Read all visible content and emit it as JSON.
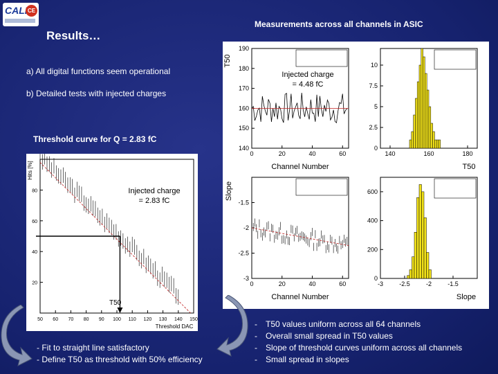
{
  "logo": {
    "text_left": "CALI",
    "text_right": "CE"
  },
  "title": "Results…",
  "headline": "Measurements across all channels in ASIC",
  "bullets": [
    "a) All digital functions seem operational",
    "b) Detailed tests with injected charges"
  ],
  "threshold_title": "Threshold curve for Q = 2.83 fC",
  "annotations": {
    "injected_top_1": "Injected charge",
    "injected_top_2": "= 4.48 fC",
    "injected_left_1": "Injected charge",
    "injected_left_2": "= 2.83 fC",
    "t50_marker": "T50"
  },
  "notes": [
    "- Fit to straight line satisfactory",
    "- Define T50 as threshold with 50% efficiency"
  ],
  "summary": [
    "T50 values uniform across all 64 channels",
    "Overall small spread in T50 values",
    "Slope of threshold curves uniform across all channels",
    "Small spread in slopes"
  ],
  "summary_dash": "-",
  "chart_data": [
    {
      "type": "scatter",
      "ylabel": "T50",
      "xlabel": "Channel Number",
      "xlim": [
        0,
        64
      ],
      "ylim": [
        140,
        190
      ],
      "x_ticks": [
        "0",
        "20",
        "40",
        "60"
      ],
      "y_ticks": [
        "140",
        "150",
        "160",
        "170",
        "180",
        "190"
      ],
      "fit_value": 160
    },
    {
      "type": "bar",
      "xlabel": "T50",
      "xlim": [
        135,
        185
      ],
      "ylim": [
        0,
        12
      ],
      "x_ticks": [
        "140",
        "160",
        "180"
      ],
      "y_ticks": [
        "0",
        "2.5",
        "5",
        "7.5",
        "10"
      ],
      "categories": [
        150,
        151,
        152,
        153,
        154,
        155,
        156,
        157,
        158,
        159,
        160,
        161,
        162,
        163,
        164,
        165
      ],
      "values": [
        1,
        2,
        4,
        6,
        8,
        10,
        12,
        11,
        9,
        7,
        5,
        3,
        2,
        1,
        1,
        1
      ]
    },
    {
      "type": "scatter",
      "ylabel": "Slope",
      "xlabel": "Channel Number",
      "xlim": [
        0,
        64
      ],
      "ylim": [
        -3,
        -1
      ],
      "x_ticks": [
        "0",
        "20",
        "40",
        "60"
      ],
      "y_ticks": [
        "-1.5",
        "-2",
        "-2.5",
        "-3"
      ],
      "fit_start": -2.0,
      "fit_end": -2.35
    },
    {
      "type": "bar",
      "xlabel": "Slope",
      "xlim": [
        -3,
        -1
      ],
      "ylim": [
        0,
        700
      ],
      "x_ticks": [
        "-3",
        "-2.5",
        "-2",
        "-1.5"
      ],
      "y_ticks": [
        "0",
        "200",
        "400",
        "600"
      ],
      "categories": [
        -2.45,
        -2.4,
        -2.35,
        -2.3,
        -2.25,
        -2.2,
        -2.15,
        -2.1,
        -2.05,
        -2.0
      ],
      "values": [
        20,
        60,
        150,
        320,
        560,
        650,
        600,
        420,
        180,
        60
      ]
    },
    {
      "type": "line",
      "ylabel": "Hits [%]",
      "xlabel": "Threshold DAC",
      "xlim": [
        50,
        150
      ],
      "ylim": [
        0,
        100
      ],
      "x_ticks": [
        "50",
        "60",
        "70",
        "80",
        "90",
        "100",
        "110",
        "120",
        "130",
        "140",
        "150"
      ],
      "y_ticks": [
        "20",
        "40",
        "60",
        "80"
      ],
      "t50_x": 102,
      "t50_y": 50
    }
  ]
}
